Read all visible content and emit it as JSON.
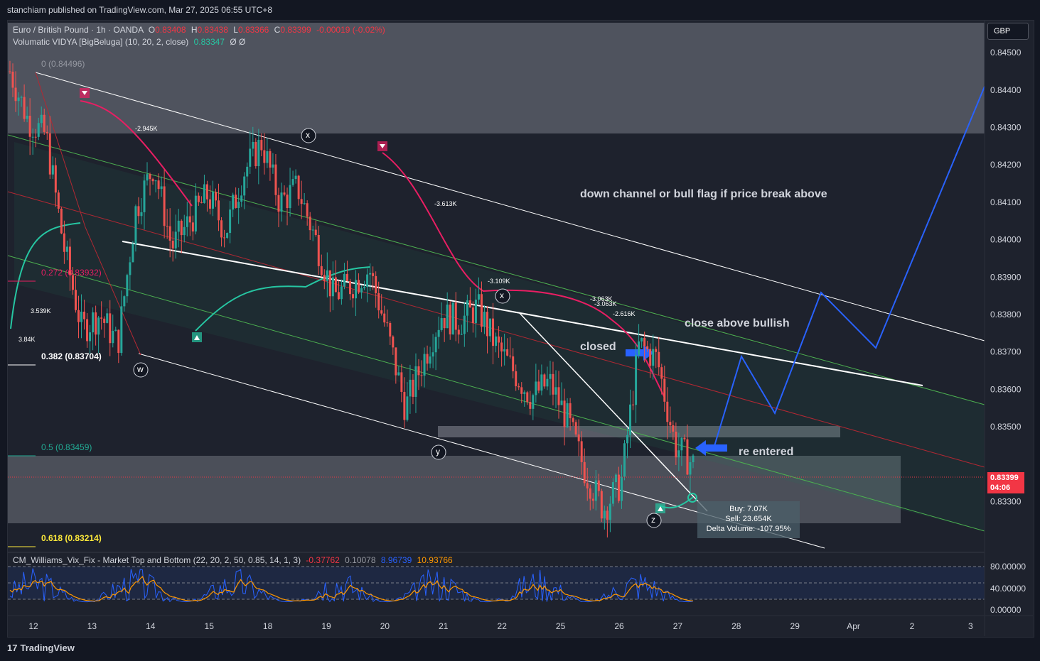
{
  "header": {
    "publisher": "stanchiam published on TradingView.com, Mar 27, 2025 06:55 UTC+8"
  },
  "legend": {
    "symbol": "Euro / British Pound · 1h · OANDA",
    "ohlc": [
      {
        "k": "O",
        "v": "0.83408"
      },
      {
        "k": "H",
        "v": "0.83438"
      },
      {
        "k": "L",
        "v": "0.83366"
      },
      {
        "k": "C",
        "v": "0.83399"
      }
    ],
    "change": "-0.00019 (-0.02%)",
    "indicator": "Volumatic VIDYA [BigBeluga] (10, 20, 2, close)",
    "indicator_value": "0.83347",
    "indicator_extra": "Ø  Ø",
    "sub_indicator": "CM_Williams_Vix_Fix - Market Top and Bottom (22, 20, 2, 50, 0.85, 14, 1, 3)",
    "sub_values": [
      "-0.37762",
      "0.10078",
      "8.96739",
      "10.93766"
    ]
  },
  "currency": "GBP",
  "current_price": {
    "price": "0.83399",
    "countdown": "04:06"
  },
  "fib_levels": [
    {
      "label": "0 (0.84496)",
      "price": 0.84496,
      "color": "#9598a1"
    },
    {
      "label": "0.272 (0.83932)",
      "price": 0.83932,
      "color": "#e91e63"
    },
    {
      "label": "0.382 (0.83704)",
      "price": 0.83704,
      "color": "#ffffff"
    },
    {
      "label": "0.5 (0.83459)",
      "price": 0.83459,
      "color": "#22ab94"
    },
    {
      "label": "0.618 (0.83214)",
      "price": 0.83214,
      "color": "#ffeb3b"
    }
  ],
  "annotations": {
    "main": "down channel or bull flag if price break above",
    "bullish": "close above bullish",
    "closed": "closed",
    "reentered": "re entered"
  },
  "vidya_labels": [
    "-2.945K",
    "-3.613K",
    "-3.109K",
    "-3.063K",
    "-3.063K",
    "-2.616K",
    "3.539K",
    "3.84K"
  ],
  "wave_labels": [
    "x",
    "w",
    "y",
    "x",
    "z"
  ],
  "volume_box": {
    "buy": "Buy: 7.07K",
    "sell": "Sell: 23.654K",
    "delta": "Delta Volume: -107.95%"
  },
  "chart_data": {
    "type": "line",
    "title": "Euro / British Pound · 1h · OANDA",
    "y_ticks": [
      "0.84500",
      "0.84400",
      "0.84300",
      "0.84200",
      "0.84100",
      "0.84000",
      "0.83900",
      "0.83800",
      "0.83700",
      "0.83600",
      "0.83500",
      "0.83300"
    ],
    "ylim": [
      0.8317,
      0.8458
    ],
    "x_ticks": [
      "12",
      "13",
      "14",
      "15",
      "18",
      "19",
      "20",
      "21",
      "22",
      "25",
      "26",
      "27",
      "28",
      "29",
      "Apr",
      "2",
      "3"
    ],
    "sub_y_ticks": [
      "80.00000",
      "40.00000",
      "0.00000"
    ],
    "price_path": [
      0.8445,
      0.8432,
      0.8428,
      0.8398,
      0.8376,
      0.838,
      0.8372,
      0.8408,
      0.842,
      0.8398,
      0.8405,
      0.8412,
      0.8402,
      0.8418,
      0.8426,
      0.841,
      0.8414,
      0.84,
      0.8385,
      0.8388,
      0.8392,
      0.8375,
      0.8355,
      0.8368,
      0.838,
      0.8378,
      0.8382,
      0.8372,
      0.8365,
      0.8358,
      0.8362,
      0.8352,
      0.8338,
      0.8328,
      0.8335,
      0.8372,
      0.8368,
      0.8345,
      0.834
    ],
    "projection": [
      0.834,
      0.8372,
      0.8358,
      0.8391,
      0.8376,
      0.845
    ],
    "grid": false
  }
}
